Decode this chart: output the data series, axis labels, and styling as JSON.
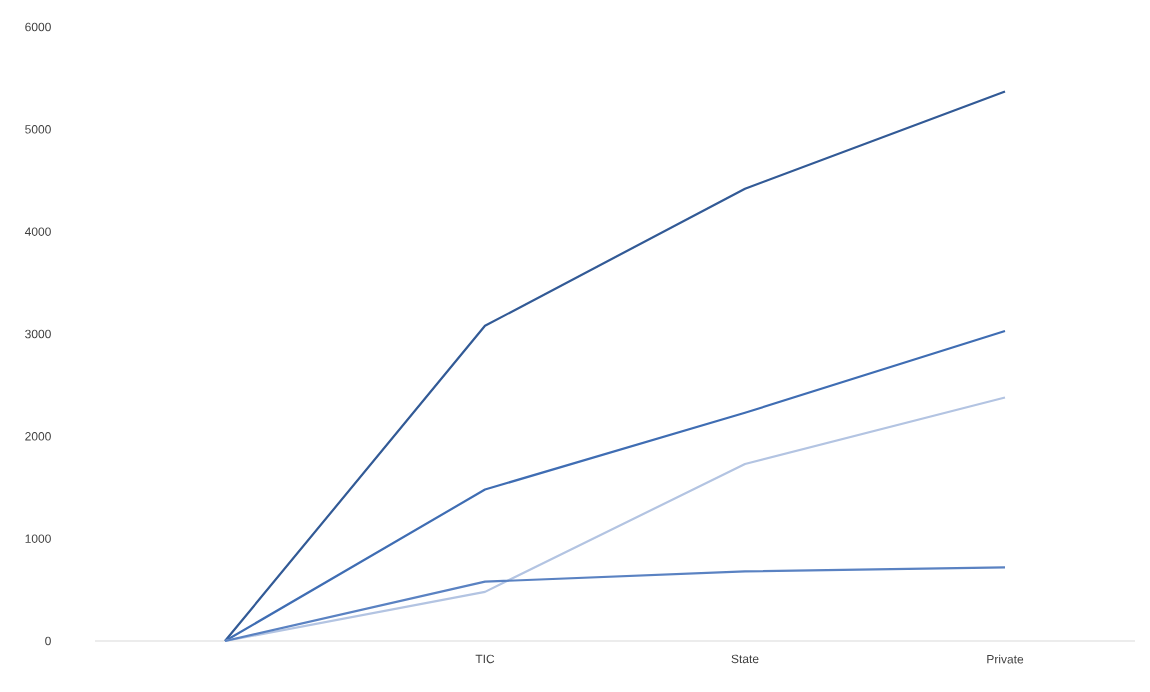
{
  "chart_data": {
    "type": "line",
    "categories": [
      null,
      "TIC",
      "State",
      "Private"
    ],
    "marker": "none",
    "ylim": [
      0,
      6000
    ],
    "yticks": [
      0,
      1000,
      2000,
      3000,
      4000,
      5000,
      6000
    ],
    "series": [
      {
        "color": "#325a96",
        "values": [
          0,
          3080,
          4420,
          5370
        ]
      },
      {
        "color": "#3f6db3",
        "values": [
          0,
          1480,
          2230,
          3030
        ]
      },
      {
        "color": "#b3c4e2",
        "values": [
          0,
          480,
          1730,
          2380
        ]
      },
      {
        "color": "#5a82c2",
        "values": [
          0,
          580,
          680,
          720
        ]
      }
    ]
  }
}
